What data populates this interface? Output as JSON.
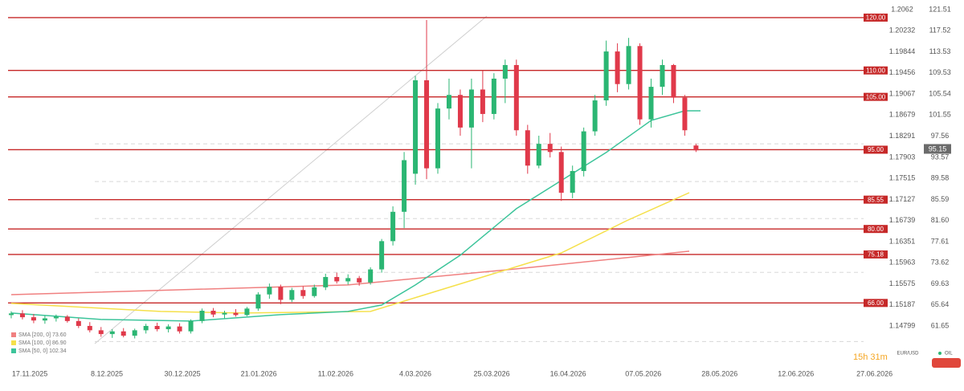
{
  "chart_data": {
    "type": "candlestick",
    "x": [
      0,
      1,
      2,
      3,
      4,
      5,
      6,
      7,
      8,
      9,
      10,
      11,
      12,
      13,
      14,
      15,
      16,
      17,
      18,
      19,
      20,
      21,
      22,
      23,
      24,
      25,
      26,
      27,
      28,
      29,
      30,
      31,
      32,
      33,
      34,
      35,
      36,
      37,
      38,
      39,
      40,
      41,
      42,
      43,
      44,
      45,
      46,
      47,
      48,
      49,
      50,
      51,
      52,
      53,
      54,
      55,
      56,
      57,
      58,
      59,
      60,
      61
    ],
    "open": [
      1.15,
      1.1503,
      1.1496,
      1.149,
      1.1494,
      1.1497,
      1.1489,
      1.148,
      1.1472,
      1.1465,
      1.147,
      1.1462,
      1.1472,
      1.148,
      1.1474,
      1.1479,
      1.147,
      1.1489,
      1.1508,
      1.1501,
      1.1504,
      1.15,
      1.1512,
      1.1538,
      1.1552,
      1.1528,
      1.1546,
      1.1535,
      1.1551,
      1.157,
      1.1562,
      1.1568,
      1.156,
      1.1584,
      1.1636,
      1.169,
      1.176,
      1.1932,
      1.177,
      1.188,
      1.1905,
      1.1845,
      1.1915,
      1.187,
      1.1935,
      1.196,
      1.184,
      1.1775,
      1.1815,
      1.18,
      1.1725,
      1.1765,
      1.1838,
      1.1895,
      1.1985,
      1.1925,
      1.1995,
      1.186,
      1.192,
      1.196,
      1.19,
      1.1812
    ],
    "high": [
      1.1507,
      1.1509,
      1.1502,
      1.1499,
      1.1501,
      1.15,
      1.1494,
      1.1487,
      1.1478,
      1.1474,
      1.1476,
      1.1475,
      1.1484,
      1.1486,
      1.1483,
      1.1485,
      1.1492,
      1.1512,
      1.1513,
      1.1508,
      1.1511,
      1.1515,
      1.1542,
      1.1558,
      1.1556,
      1.155,
      1.1553,
      1.1556,
      1.1576,
      1.1578,
      1.1575,
      1.1572,
      1.1588,
      1.164,
      1.17,
      1.18,
      1.194,
      1.2043,
      1.189,
      1.1935,
      1.1915,
      1.1935,
      1.195,
      1.1945,
      1.197,
      1.197,
      1.185,
      1.183,
      1.1835,
      1.181,
      1.1775,
      1.1845,
      1.1905,
      1.2005,
      1.2,
      1.201,
      1.2,
      1.1935,
      1.197,
      1.1962,
      1.1905,
      1.1815
    ],
    "low": [
      1.1494,
      1.1492,
      1.1485,
      1.1484,
      1.1488,
      1.1486,
      1.1476,
      1.1468,
      1.146,
      1.1458,
      1.1459,
      1.1457,
      1.1466,
      1.147,
      1.1468,
      1.1466,
      1.1466,
      1.1485,
      1.1496,
      1.1494,
      1.1497,
      1.1498,
      1.1508,
      1.153,
      1.152,
      1.1524,
      1.153,
      1.1532,
      1.1546,
      1.1558,
      1.1556,
      1.1554,
      1.1556,
      1.1578,
      1.1628,
      1.166,
      1.174,
      1.175,
      1.176,
      1.186,
      1.183,
      1.177,
      1.1855,
      1.186,
      1.189,
      1.183,
      1.176,
      1.177,
      1.179,
      1.171,
      1.1715,
      1.1755,
      1.183,
      1.1885,
      1.191,
      1.1915,
      1.185,
      1.1845,
      1.1905,
      1.189,
      1.183,
      1.18
    ],
    "close": [
      1.1503,
      1.1496,
      1.149,
      1.1494,
      1.1497,
      1.1489,
      1.148,
      1.1472,
      1.1465,
      1.147,
      1.1462,
      1.1472,
      1.148,
      1.1474,
      1.1479,
      1.147,
      1.1489,
      1.1508,
      1.1501,
      1.1504,
      1.15,
      1.1512,
      1.1538,
      1.1552,
      1.1528,
      1.1546,
      1.1535,
      1.1551,
      1.157,
      1.1562,
      1.1568,
      1.156,
      1.1584,
      1.1636,
      1.169,
      1.1785,
      1.1932,
      1.177,
      1.188,
      1.1905,
      1.1845,
      1.1915,
      1.187,
      1.1935,
      1.196,
      1.184,
      1.1775,
      1.1815,
      1.18,
      1.1725,
      1.1765,
      1.1838,
      1.1895,
      1.1985,
      1.1925,
      1.1995,
      1.186,
      1.192,
      1.196,
      1.19,
      1.184,
      1.1803
    ],
    "up_color": "#2bb673",
    "down_color": "#e0394a",
    "series": [
      {
        "name": "SMA [200, 0] 73.60",
        "color": "#f08080",
        "x": [
          0,
          30,
          45,
          60.4
        ],
        "values": [
          1.15376,
          1.15554,
          1.15849,
          1.16174
        ]
      },
      {
        "name": "SMA [100, 0] 86.90",
        "color": "#f5e04a",
        "x": [
          0,
          13.3,
          20.5,
          32,
          36.2,
          42,
          49,
          54.8,
          60.4
        ],
        "values": [
          1.15214,
          1.15066,
          1.15037,
          1.15066,
          1.15332,
          1.15701,
          1.16144,
          1.16735,
          1.17252
        ]
      },
      {
        "name": "SMA [50, 0] 102.34",
        "color": "#3cc49a",
        "x": [
          0,
          8,
          16,
          24,
          30,
          33,
          36,
          40,
          45,
          49,
          53,
          57,
          60,
          61.4
        ],
        "values": [
          1.15037,
          1.14919,
          1.14889,
          1.15007,
          1.15066,
          1.15185,
          1.15554,
          1.161,
          1.16957,
          1.17474,
          1.17991,
          1.18581,
          1.18758,
          1.18758
        ]
      }
    ],
    "xlim": [
      -1,
      77
    ],
    "xticks": [
      {
        "value": 1.65,
        "label": "17.11.2025"
      },
      {
        "value": 8.52,
        "label": "8.12.2025"
      },
      {
        "value": 15.25,
        "label": "30.12.2025"
      },
      {
        "value": 22.05,
        "label": "21.01.2026"
      },
      {
        "value": 28.9,
        "label": "11.02.2026"
      },
      {
        "value": 36.0,
        "label": "4.03.2026"
      },
      {
        "value": 42.8,
        "label": "25.03.2026"
      },
      {
        "value": 49.6,
        "label": "16.04.2026"
      },
      {
        "value": 56.3,
        "label": "07.05.2026"
      },
      {
        "value": 63.1,
        "label": "28.05.2026"
      },
      {
        "value": 69.9,
        "label": "12.06.2026"
      },
      {
        "value": 76.9,
        "label": "27.06.2026"
      }
    ],
    "ylim": [
      1.14297,
      1.20723
    ],
    "yticks": [
      1.2062,
      1.20232,
      1.19844,
      1.19456,
      1.19067,
      1.18679,
      1.18291,
      1.17903,
      1.17515,
      1.17127,
      1.16739,
      1.16351,
      1.15963,
      1.15575,
      1.15187,
      1.14799
    ],
    "y2lim": [
      56.48,
      122.57
    ],
    "y2ticks": [
      121.51,
      117.52,
      113.53,
      109.53,
      105.54,
      101.55,
      97.56,
      93.57,
      89.58,
      85.59,
      {
        "value": 81.6,
        "label": "81.60"
      },
      77.61,
      73.62,
      69.63,
      65.64,
      61.65
    ],
    "levels": [
      {
        "value": 120,
        "label": "120.00"
      },
      {
        "value": 110,
        "label": "110.00"
      },
      {
        "value": 105,
        "label": "105.00"
      },
      {
        "value": 95,
        "label": "95.00"
      },
      {
        "value": 85.55,
        "label": "85.55"
      },
      {
        "value": 80,
        "label": "80.00"
      },
      {
        "value": 75.18,
        "label": "75.18"
      },
      {
        "value": 66,
        "label": "66.00"
      }
    ],
    "level_color": "#c62828",
    "dashed_levels": [
      96.12,
      88.97,
      81.97,
      71.78,
      58.7
    ],
    "current_value": 95.15,
    "symbols": [
      "EUR/USD",
      "OIL"
    ],
    "timer": "15h 31m"
  }
}
